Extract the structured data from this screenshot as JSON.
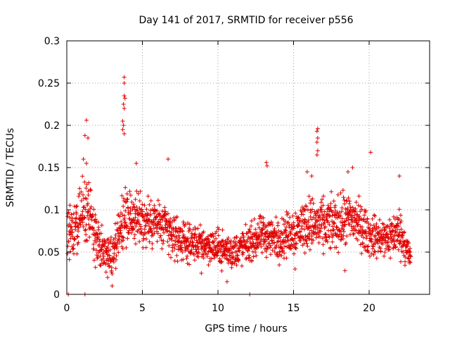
{
  "chart_data": {
    "type": "scatter",
    "title": "Day 141 of 2017, SRMTID for receiver p556",
    "xlabel": "GPS time / hours",
    "ylabel": "SRMTID / TECUs",
    "xlim": [
      0,
      24
    ],
    "ylim": [
      0,
      0.3
    ],
    "x_ticks": [
      0,
      5,
      10,
      15,
      20
    ],
    "x_tick_labels": [
      "0",
      "5",
      "10",
      "15",
      "20"
    ],
    "y_ticks": [
      0,
      0.05,
      0.1,
      0.15,
      0.2,
      0.25,
      0.3
    ],
    "y_tick_labels": [
      "0",
      "0.05",
      "0.1",
      "0.15",
      "0.2",
      "0.25",
      "0.3"
    ],
    "grid": true,
    "marker": "plus",
    "series_color": "#e00000",
    "series": [
      {
        "name": "SRMTID",
        "profile": [
          {
            "t": 0.0,
            "base": 0.075,
            "spread": 0.05
          },
          {
            "t": 0.5,
            "base": 0.07,
            "spread": 0.045
          },
          {
            "t": 1.0,
            "base": 0.1,
            "spread": 0.06
          },
          {
            "t": 1.5,
            "base": 0.09,
            "spread": 0.06
          },
          {
            "t": 2.0,
            "base": 0.06,
            "spread": 0.04
          },
          {
            "t": 2.5,
            "base": 0.05,
            "spread": 0.035
          },
          {
            "t": 3.0,
            "base": 0.045,
            "spread": 0.035
          },
          {
            "t": 3.5,
            "base": 0.08,
            "spread": 0.05
          },
          {
            "t": 4.0,
            "base": 0.095,
            "spread": 0.05
          },
          {
            "t": 5.0,
            "base": 0.085,
            "spread": 0.045
          },
          {
            "t": 6.0,
            "base": 0.085,
            "spread": 0.045
          },
          {
            "t": 7.0,
            "base": 0.07,
            "spread": 0.04
          },
          {
            "t": 8.0,
            "base": 0.06,
            "spread": 0.03
          },
          {
            "t": 9.0,
            "base": 0.06,
            "spread": 0.03
          },
          {
            "t": 10.0,
            "base": 0.055,
            "spread": 0.03
          },
          {
            "t": 11.0,
            "base": 0.05,
            "spread": 0.03
          },
          {
            "t": 12.0,
            "base": 0.06,
            "spread": 0.03
          },
          {
            "t": 13.0,
            "base": 0.07,
            "spread": 0.035
          },
          {
            "t": 14.0,
            "base": 0.065,
            "spread": 0.035
          },
          {
            "t": 15.0,
            "base": 0.075,
            "spread": 0.04
          },
          {
            "t": 16.0,
            "base": 0.085,
            "spread": 0.045
          },
          {
            "t": 17.0,
            "base": 0.08,
            "spread": 0.045
          },
          {
            "t": 18.0,
            "base": 0.085,
            "spread": 0.045
          },
          {
            "t": 19.0,
            "base": 0.09,
            "spread": 0.045
          },
          {
            "t": 20.0,
            "base": 0.07,
            "spread": 0.035
          },
          {
            "t": 21.0,
            "base": 0.065,
            "spread": 0.035
          },
          {
            "t": 22.0,
            "base": 0.075,
            "spread": 0.04
          },
          {
            "t": 22.7,
            "base": 0.045,
            "spread": 0.025
          }
        ],
        "t_start": 0.05,
        "t_end": 22.75,
        "t_step": 0.0125,
        "outliers": [
          [
            0.1,
            0.0
          ],
          [
            1.2,
            0.0
          ],
          [
            12.1,
            0.0
          ],
          [
            3.8,
            0.257
          ],
          [
            3.8,
            0.25
          ],
          [
            3.8,
            0.235
          ],
          [
            3.85,
            0.232
          ],
          [
            3.75,
            0.225
          ],
          [
            3.8,
            0.22
          ],
          [
            3.7,
            0.205
          ],
          [
            3.75,
            0.2
          ],
          [
            3.7,
            0.195
          ],
          [
            3.8,
            0.19
          ],
          [
            1.3,
            0.206
          ],
          [
            1.2,
            0.188
          ],
          [
            1.4,
            0.185
          ],
          [
            16.6,
            0.196
          ],
          [
            16.55,
            0.193
          ],
          [
            16.6,
            0.185
          ],
          [
            16.55,
            0.18
          ],
          [
            16.6,
            0.17
          ],
          [
            16.55,
            0.165
          ],
          [
            20.1,
            0.168
          ],
          [
            6.7,
            0.16
          ],
          [
            13.2,
            0.156
          ],
          [
            13.25,
            0.152
          ],
          [
            4.6,
            0.155
          ],
          [
            1.1,
            0.16
          ],
          [
            1.3,
            0.155
          ],
          [
            18.9,
            0.15
          ],
          [
            18.6,
            0.145
          ],
          [
            22.0,
            0.14
          ],
          [
            15.9,
            0.145
          ],
          [
            16.2,
            0.14
          ],
          [
            18.4,
            0.028
          ],
          [
            10.6,
            0.015
          ],
          [
            3.0,
            0.01
          ],
          [
            2.7,
            0.02
          ],
          [
            8.9,
            0.025
          ],
          [
            15.1,
            0.03
          ]
        ]
      }
    ]
  }
}
